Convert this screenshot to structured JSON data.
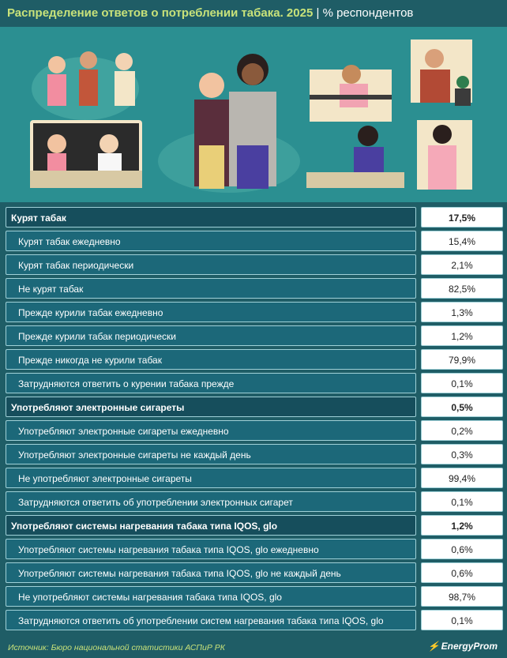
{
  "header": {
    "title": "Распределение ответов о потреблении табака. 2025",
    "separator": "|",
    "unit": "% респондентов"
  },
  "chart_data": {
    "type": "table",
    "rows": [
      {
        "label": "Курят табак",
        "value": "17,5%",
        "level": "main"
      },
      {
        "label": "Курят табак ежедневно",
        "value": "15,4%",
        "level": "sub"
      },
      {
        "label": "Курят табак периодически",
        "value": "2,1%",
        "level": "sub"
      },
      {
        "label": "Не курят табак",
        "value": "82,5%",
        "level": "sub"
      },
      {
        "label": "Прежде курили табак ежедневно",
        "value": "1,3%",
        "level": "sub"
      },
      {
        "label": "Прежде курили табак периодически",
        "value": "1,2%",
        "level": "sub"
      },
      {
        "label": "Прежде никогда не курили табак",
        "value": "79,9%",
        "level": "sub"
      },
      {
        "label": "Затрудняются ответить о курении табака прежде",
        "value": "0,1%",
        "level": "sub"
      },
      {
        "label": "Употребляют электронные сигареты",
        "value": "0,5%",
        "level": "main"
      },
      {
        "label": "Употребляют электронные сигареты ежедневно",
        "value": "0,2%",
        "level": "sub"
      },
      {
        "label": "Употребляют электронные сигареты не каждый день",
        "value": "0,3%",
        "level": "sub"
      },
      {
        "label": "Не употребляют электронные сигареты",
        "value": "99,4%",
        "level": "sub"
      },
      {
        "label": "Затрудняются ответить об употреблении электронных сигарет",
        "value": "0,1%",
        "level": "sub"
      },
      {
        "label": "Употребляют системы нагревания табака типа IQOS, glo",
        "value": "1,2%",
        "level": "main"
      },
      {
        "label": "Употребляют системы нагревания табака типа IQOS, glo ежедневно",
        "value": "0,6%",
        "level": "sub"
      },
      {
        "label": "Употребляют системы нагревания табака типа IQOS, glo не каждый день",
        "value": "0,6%",
        "level": "sub"
      },
      {
        "label": "Не употребляют системы нагревания табака типа IQOS, glo",
        "value": "98,7%",
        "level": "sub"
      },
      {
        "label": "Затрудняются ответить об употреблении систем нагревания табака типа IQOS, glo",
        "value": "0,1%",
        "level": "sub"
      }
    ]
  },
  "footer": {
    "source": "Источник: Бюро национальной статистики АСПиР РК",
    "logo": "EnergyProm"
  }
}
